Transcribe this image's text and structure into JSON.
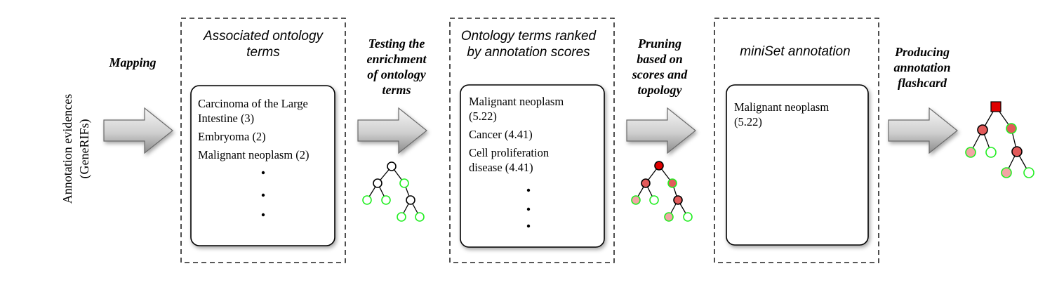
{
  "input": {
    "line1": "Annotation evidences",
    "line2": "(GeneRIFs)"
  },
  "steps": {
    "mapping": [
      "Mapping"
    ],
    "testing": [
      "Testing the",
      "enrichment",
      "of ontology",
      "terms"
    ],
    "pruning": [
      "Pruning",
      "based on",
      "scores and",
      "topology"
    ],
    "producing": [
      "Producing",
      "annotation",
      "flashcard"
    ]
  },
  "panels": [
    {
      "title": [
        "Associated ontology",
        "terms"
      ],
      "entries": [
        [
          "Carcinoma of the Large",
          "Intestine (3)"
        ],
        [
          "Embryoma (2)"
        ],
        [
          "Malignant neoplasm (2)"
        ]
      ]
    },
    {
      "title": [
        "Ontology terms ranked",
        "by annotation scores"
      ],
      "entries": [
        [
          "Malignant neoplasm",
          "(5.22)"
        ],
        [
          "Cancer (4.41)"
        ],
        [
          "Cell proliferation",
          "disease (4.41)"
        ]
      ]
    },
    {
      "title": [
        "miniSet annotation"
      ],
      "entries": [
        [
          "Malignant neoplasm",
          "(5.22)"
        ]
      ]
    }
  ],
  "colors": {
    "arrow_fill_light": "#f2f2f2",
    "arrow_fill_dark": "#8c8c8c",
    "red": "#e00000",
    "red_node": "#e25a5a",
    "pink_node": "#f2a5a5",
    "green_stroke": "#22ee22",
    "dash": "#222222"
  }
}
